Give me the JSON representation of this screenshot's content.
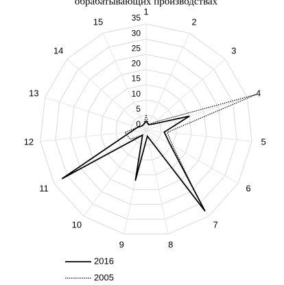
{
  "chart_data": {
    "type": "radar",
    "title": "обрабатывающих производствах",
    "categories": [
      "1",
      "2",
      "3",
      "4",
      "5",
      "6",
      "7",
      "8",
      "9",
      "10",
      "11",
      "12",
      "13",
      "14",
      "15"
    ],
    "ylim": [
      0,
      35
    ],
    "yticks": [
      0,
      5,
      10,
      15,
      20,
      25,
      30,
      35
    ],
    "grid": true,
    "series": [
      {
        "name": "2016",
        "color": "#000000",
        "dash": "solid",
        "values": [
          3,
          2,
          3,
          15,
          6,
          9,
          33,
          2,
          17,
          2,
          32,
          5,
          3,
          2,
          2
        ]
      },
      {
        "name": "2005",
        "color": "#000000",
        "dash": "dotted",
        "values": [
          5,
          2,
          4,
          38,
          7,
          10,
          32,
          2,
          16,
          2,
          6,
          7,
          3,
          2,
          2
        ]
      }
    ]
  }
}
